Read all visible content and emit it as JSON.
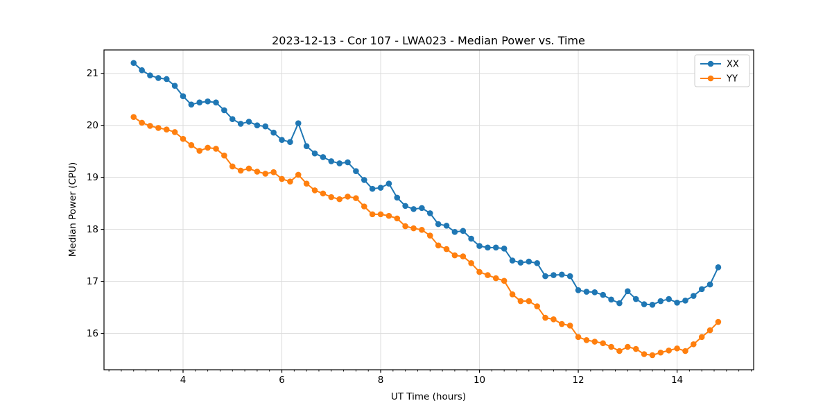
{
  "chart_data": {
    "type": "line",
    "title": "2023-12-13 - Cor 107 - LWA023 - Median Power vs. Time",
    "xlabel": "UT Time (hours)",
    "ylabel": "Median Power (CPU)",
    "xlim": [
      2.4,
      15.55
    ],
    "ylim": [
      15.3,
      21.45
    ],
    "x_ticks": [
      4,
      6,
      8,
      10,
      12,
      14
    ],
    "y_ticks": [
      16,
      17,
      18,
      19,
      20,
      21
    ],
    "x_minor_step": 0.25,
    "grid": true,
    "grid_color": "#dcdcdc",
    "legend_position": "upper right",
    "background": "#ffffff",
    "x": [
      3.0,
      3.167,
      3.333,
      3.5,
      3.667,
      3.833,
      4.0,
      4.167,
      4.333,
      4.5,
      4.667,
      4.833,
      5.0,
      5.167,
      5.333,
      5.5,
      5.667,
      5.833,
      6.0,
      6.167,
      6.333,
      6.5,
      6.667,
      6.833,
      7.0,
      7.167,
      7.333,
      7.5,
      7.667,
      7.833,
      8.0,
      8.167,
      8.333,
      8.5,
      8.667,
      8.833,
      9.0,
      9.167,
      9.333,
      9.5,
      9.667,
      9.833,
      10.0,
      10.167,
      10.333,
      10.5,
      10.667,
      10.833,
      11.0,
      11.167,
      11.333,
      11.5,
      11.667,
      11.833,
      12.0,
      12.167,
      12.333,
      12.5,
      12.667,
      12.833,
      13.0,
      13.167,
      13.333,
      13.5,
      13.667,
      13.833,
      14.0,
      14.167,
      14.333,
      14.5,
      14.667,
      14.833
    ],
    "series": [
      {
        "name": "XX",
        "color": "#1f77b4",
        "values": [
          21.2,
          21.06,
          20.96,
          20.91,
          20.89,
          20.76,
          20.56,
          20.4,
          20.44,
          20.46,
          20.44,
          20.29,
          20.12,
          20.03,
          20.07,
          20.0,
          19.98,
          19.86,
          19.72,
          19.68,
          20.04,
          19.6,
          19.46,
          19.39,
          19.31,
          19.27,
          19.29,
          19.12,
          18.95,
          18.78,
          18.8,
          18.88,
          18.61,
          18.45,
          18.39,
          18.41,
          18.31,
          18.1,
          18.07,
          17.95,
          17.97,
          17.82,
          17.68,
          17.65,
          17.65,
          17.63,
          17.4,
          17.36,
          17.38,
          17.35,
          17.1,
          17.12,
          17.13,
          17.1,
          16.83,
          16.8,
          16.79,
          16.74,
          16.65,
          16.58,
          16.81,
          16.66,
          16.56,
          16.55,
          16.62,
          16.66,
          16.59,
          16.63,
          16.72,
          16.85,
          16.94,
          17.27
        ]
      },
      {
        "name": "YY",
        "color": "#ff7f0e",
        "values": [
          20.16,
          20.05,
          19.99,
          19.95,
          19.92,
          19.87,
          19.74,
          19.62,
          19.51,
          19.57,
          19.55,
          19.42,
          19.21,
          19.13,
          19.17,
          19.11,
          19.07,
          19.1,
          18.97,
          18.92,
          19.05,
          18.88,
          18.75,
          18.69,
          18.62,
          18.58,
          18.63,
          18.6,
          18.44,
          18.29,
          18.29,
          18.26,
          18.21,
          18.06,
          18.02,
          17.99,
          17.88,
          17.69,
          17.62,
          17.5,
          17.48,
          17.35,
          17.18,
          17.12,
          17.06,
          17.01,
          16.75,
          16.62,
          16.62,
          16.52,
          16.3,
          16.27,
          16.18,
          16.15,
          15.93,
          15.87,
          15.84,
          15.81,
          15.74,
          15.66,
          15.74,
          15.7,
          15.6,
          15.58,
          15.63,
          15.67,
          15.71,
          15.66,
          15.79,
          15.93,
          16.06,
          16.22
        ]
      }
    ]
  }
}
